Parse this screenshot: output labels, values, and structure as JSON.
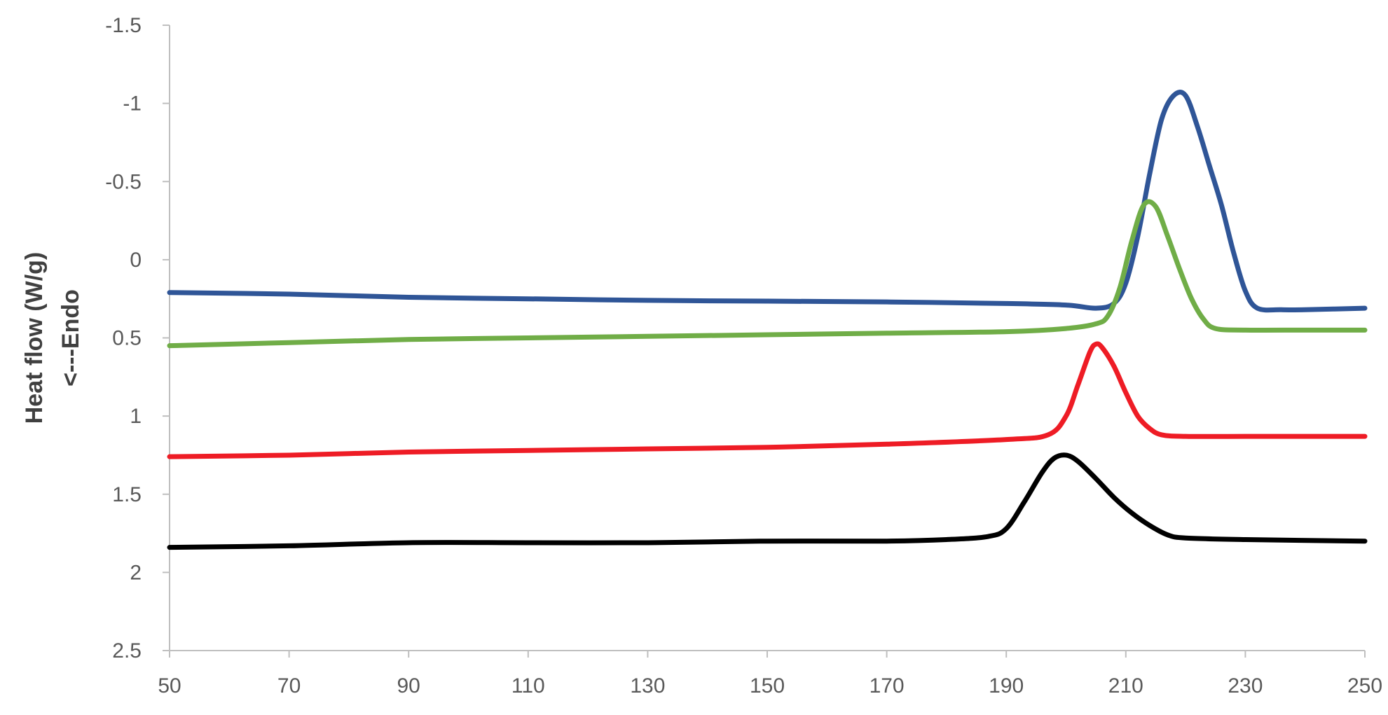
{
  "chart_data": {
    "type": "line",
    "title": "",
    "xlabel": "",
    "ylabel": [
      "Heat flow (W/g)",
      "<---Endo"
    ],
    "xlim": [
      50,
      250
    ],
    "ylim": [
      -1.5,
      2.5
    ],
    "y_inverted": true,
    "x_ticks": [
      50,
      70,
      90,
      110,
      130,
      150,
      170,
      190,
      210,
      230,
      250
    ],
    "y_ticks": [
      -1.5,
      -1,
      -0.5,
      0,
      0.5,
      1,
      1.5,
      2,
      2.5
    ],
    "grid": false,
    "legend": "none",
    "series": [
      {
        "color": "#2f5597",
        "points": [
          [
            50,
            0.21
          ],
          [
            70,
            0.22
          ],
          [
            90,
            0.24
          ],
          [
            110,
            0.25
          ],
          [
            130,
            0.26
          ],
          [
            150,
            0.265
          ],
          [
            170,
            0.27
          ],
          [
            190,
            0.28
          ],
          [
            200,
            0.29
          ],
          [
            205,
            0.31
          ],
          [
            208,
            0.28
          ],
          [
            210,
            0.15
          ],
          [
            212,
            -0.15
          ],
          [
            214,
            -0.55
          ],
          [
            216,
            -0.9
          ],
          [
            218,
            -1.05
          ],
          [
            220,
            -1.05
          ],
          [
            222,
            -0.85
          ],
          [
            224,
            -0.6
          ],
          [
            226,
            -0.35
          ],
          [
            228,
            -0.05
          ],
          [
            230,
            0.2
          ],
          [
            232,
            0.31
          ],
          [
            236,
            0.32
          ],
          [
            240,
            0.32
          ],
          [
            250,
            0.31
          ]
        ]
      },
      {
        "color": "#70ad47",
        "points": [
          [
            50,
            0.55
          ],
          [
            70,
            0.53
          ],
          [
            90,
            0.51
          ],
          [
            110,
            0.5
          ],
          [
            130,
            0.49
          ],
          [
            150,
            0.48
          ],
          [
            170,
            0.47
          ],
          [
            190,
            0.46
          ],
          [
            200,
            0.44
          ],
          [
            205,
            0.41
          ],
          [
            207,
            0.36
          ],
          [
            209,
            0.18
          ],
          [
            211,
            -0.12
          ],
          [
            213,
            -0.35
          ],
          [
            215,
            -0.34
          ],
          [
            217,
            -0.15
          ],
          [
            219,
            0.06
          ],
          [
            221,
            0.25
          ],
          [
            223,
            0.38
          ],
          [
            225,
            0.44
          ],
          [
            230,
            0.45
          ],
          [
            240,
            0.45
          ],
          [
            250,
            0.45
          ]
        ]
      },
      {
        "color": "#ee1c25",
        "points": [
          [
            50,
            1.26
          ],
          [
            70,
            1.25
          ],
          [
            90,
            1.23
          ],
          [
            110,
            1.22
          ],
          [
            130,
            1.21
          ],
          [
            150,
            1.2
          ],
          [
            170,
            1.18
          ],
          [
            190,
            1.15
          ],
          [
            197,
            1.12
          ],
          [
            200,
            1.0
          ],
          [
            202,
            0.8
          ],
          [
            204,
            0.59
          ],
          [
            205,
            0.54
          ],
          [
            206,
            0.56
          ],
          [
            208,
            0.68
          ],
          [
            210,
            0.85
          ],
          [
            212,
            1.0
          ],
          [
            214,
            1.08
          ],
          [
            216,
            1.12
          ],
          [
            220,
            1.13
          ],
          [
            230,
            1.13
          ],
          [
            240,
            1.13
          ],
          [
            250,
            1.13
          ]
        ]
      },
      {
        "color": "#000000",
        "points": [
          [
            50,
            1.84
          ],
          [
            70,
            1.83
          ],
          [
            90,
            1.81
          ],
          [
            110,
            1.81
          ],
          [
            130,
            1.81
          ],
          [
            150,
            1.8
          ],
          [
            170,
            1.8
          ],
          [
            180,
            1.79
          ],
          [
            187,
            1.77
          ],
          [
            190,
            1.72
          ],
          [
            193,
            1.55
          ],
          [
            196,
            1.36
          ],
          [
            198,
            1.27
          ],
          [
            200,
            1.25
          ],
          [
            202,
            1.29
          ],
          [
            205,
            1.4
          ],
          [
            208,
            1.52
          ],
          [
            211,
            1.62
          ],
          [
            214,
            1.7
          ],
          [
            217,
            1.76
          ],
          [
            220,
            1.78
          ],
          [
            230,
            1.79
          ],
          [
            250,
            1.8
          ]
        ]
      }
    ]
  }
}
